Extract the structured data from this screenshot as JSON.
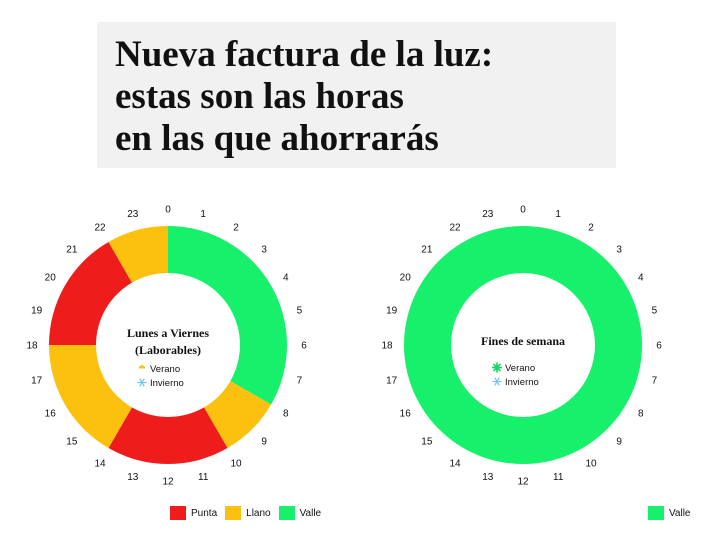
{
  "header": {
    "line1": "Nueva factura de la luz:",
    "line2": "estas son las horas",
    "line3": "en las que ahorrarás"
  },
  "colors": {
    "punta": "#ef1c1c",
    "llano": "#fcc10f",
    "valle": "#17f06a"
  },
  "chart_data": [
    {
      "type": "donut",
      "hour_labels": [
        "0",
        "1",
        "2",
        "3",
        "4",
        "5",
        "6",
        "7",
        "8",
        "9",
        "10",
        "11",
        "12",
        "13",
        "14",
        "15",
        "16",
        "17",
        "18",
        "19",
        "20",
        "21",
        "22",
        "23"
      ],
      "center": {
        "line1": "Lunes a Viernes",
        "line2": "(Laborables)"
      },
      "seasons": [
        {
          "name": "Verano",
          "icon": "sun-icon"
        },
        {
          "name": "Invierno",
          "icon": "snowflake-icon"
        }
      ],
      "segments": [
        {
          "category": "Valle",
          "start_hour": 0,
          "end_hour": 8
        },
        {
          "category": "Llano",
          "start_hour": 8,
          "end_hour": 10
        },
        {
          "category": "Punta",
          "start_hour": 10,
          "end_hour": 14
        },
        {
          "category": "Llano",
          "start_hour": 14,
          "end_hour": 18
        },
        {
          "category": "Punta",
          "start_hour": 18,
          "end_hour": 22
        },
        {
          "category": "Llano",
          "start_hour": 22,
          "end_hour": 24
        }
      ],
      "legend": [
        "Punta",
        "Llano",
        "Valle"
      ]
    },
    {
      "type": "donut",
      "hour_labels": [
        "0",
        "1",
        "2",
        "3",
        "4",
        "5",
        "6",
        "7",
        "8",
        "9",
        "10",
        "11",
        "12",
        "13",
        "14",
        "15",
        "16",
        "17",
        "18",
        "19",
        "20",
        "21",
        "22",
        "23"
      ],
      "center": {
        "line1": "Fines de semana",
        "line2": ""
      },
      "seasons": [
        {
          "name": "Verano",
          "icon": "sun-icon"
        },
        {
          "name": "Invierno",
          "icon": "snowflake-icon"
        }
      ],
      "segments": [
        {
          "category": "Valle",
          "start_hour": 0,
          "end_hour": 24
        }
      ],
      "legend": [
        "Valle"
      ]
    }
  ]
}
